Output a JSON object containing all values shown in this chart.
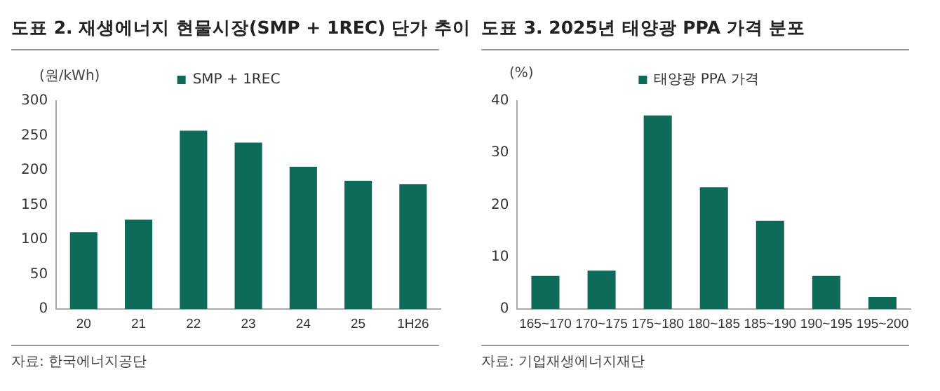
{
  "chart_data": [
    {
      "type": "bar",
      "title": "도표 2. 재생에너지 현물시장(SMP + 1REC) 단가 추이",
      "ylabel": "(원/kWh)",
      "categories": [
        "20",
        "21",
        "22",
        "23",
        "24",
        "25",
        "1H26"
      ],
      "series": [
        {
          "name": "SMP + 1REC",
          "color": "#0e6b5a",
          "values": [
            111,
            129,
            257,
            240,
            205,
            185,
            180
          ]
        }
      ],
      "ylim": [
        0,
        300
      ],
      "yticks": [
        0,
        50,
        100,
        150,
        200,
        250,
        300
      ],
      "grid": false,
      "legend": "top",
      "annotations": [
        "자료: 한국에너지공단"
      ]
    },
    {
      "type": "bar",
      "title": "도표 3. 2025년 태양광 PPA 가격 분포",
      "ylabel": "(%)",
      "categories": [
        "165~170",
        "170~175",
        "175~180",
        "180~185",
        "185~190",
        "190~195",
        "195~200"
      ],
      "series": [
        {
          "name": "태양광 PPA 가격",
          "color": "#0e6b5a",
          "values": [
            6.4,
            7.4,
            37.2,
            23.4,
            17.0,
            6.4,
            2.3
          ]
        }
      ],
      "ylim": [
        0,
        40
      ],
      "yticks": [
        0,
        10,
        20,
        30,
        40
      ],
      "grid": false,
      "legend": "top",
      "annotations": [
        "자료: 기업재생에너지재단"
      ]
    }
  ]
}
